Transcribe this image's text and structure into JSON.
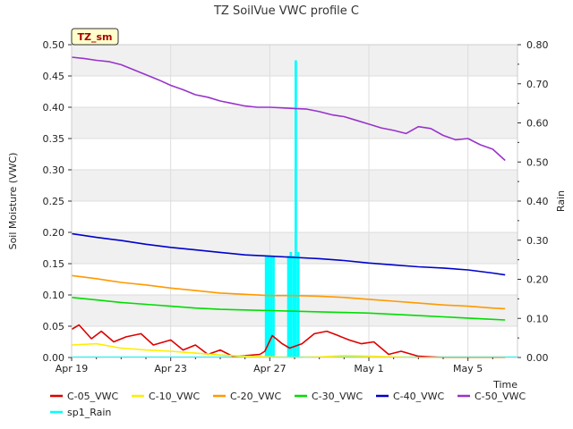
{
  "chart_data": {
    "type": "line",
    "title": "TZ SoilVue VWC profile C",
    "xlabel": "Time",
    "ylabel": "Soil Moisture (VWC)",
    "y2label": "Rain",
    "badge": "TZ_sm",
    "xlim": [
      "2023-04-19",
      "2023-05-07"
    ],
    "ylim": [
      0,
      0.5
    ],
    "y2lim": [
      0,
      0.8
    ],
    "x_ticks": [
      "Apr 19",
      "Apr 23",
      "Apr 27",
      "May 1",
      "May 5"
    ],
    "y_ticks": [
      "0.00",
      "0.05",
      "0.10",
      "0.15",
      "0.20",
      "0.25",
      "0.30",
      "0.35",
      "0.40",
      "0.45",
      "0.50"
    ],
    "y2_ticks": [
      "0.00",
      "0.10",
      "0.20",
      "0.30",
      "0.40",
      "0.50",
      "0.60",
      "0.70",
      "0.80"
    ],
    "grid": true,
    "legend_position": "bottom",
    "series": [
      {
        "name": "C-05_VWC",
        "color": "#dd0000",
        "axis": "left",
        "x": [
          0,
          0.3,
          0.8,
          1.2,
          1.7,
          2.2,
          2.8,
          3.3,
          4.0,
          4.5,
          5.0,
          5.5,
          6.0,
          6.5,
          7.0,
          7.6,
          7.8,
          8.1,
          8.5,
          8.8,
          9.3,
          9.8,
          10.3,
          10.7,
          11.2,
          11.7,
          12.2,
          12.8,
          13.3,
          14.0,
          15.0,
          16.5,
          17.5
        ],
        "y": [
          0.045,
          0.052,
          0.03,
          0.042,
          0.025,
          0.033,
          0.038,
          0.02,
          0.028,
          0.012,
          0.02,
          0.005,
          0.012,
          0.002,
          0.003,
          0.005,
          0.01,
          0.035,
          0.022,
          0.015,
          0.022,
          0.038,
          0.042,
          0.036,
          0.028,
          0.022,
          0.025,
          0.005,
          0.01,
          0.002,
          0.0,
          0.0,
          0.0
        ]
      },
      {
        "name": "C-10_VWC",
        "color": "#ffee00",
        "axis": "left",
        "x": [
          0,
          1.0,
          2.0,
          3.0,
          4.0,
          5.0,
          6.0,
          7.0,
          8.0,
          9.0,
          10.0,
          11.0,
          12.0,
          13.0,
          14.0,
          15.0,
          16.0,
          17.5
        ],
        "y": [
          0.02,
          0.022,
          0.015,
          0.012,
          0.01,
          0.007,
          0.004,
          0.002,
          0.001,
          0.0,
          0.001,
          0.003,
          0.002,
          0.001,
          0.0,
          0.0,
          0.0,
          0.0
        ]
      },
      {
        "name": "C-20_VWC",
        "color": "#ff9900",
        "axis": "left",
        "x": [
          0,
          1,
          2,
          3,
          4,
          5,
          6,
          7,
          8,
          9,
          10,
          11,
          12,
          13,
          14,
          15,
          16,
          17,
          17.5
        ],
        "y": [
          0.131,
          0.126,
          0.12,
          0.116,
          0.111,
          0.107,
          0.103,
          0.101,
          0.099,
          0.099,
          0.098,
          0.096,
          0.093,
          0.09,
          0.087,
          0.084,
          0.082,
          0.079,
          0.078
        ]
      },
      {
        "name": "C-30_VWC",
        "color": "#00dd00",
        "axis": "left",
        "x": [
          0,
          1,
          2,
          3,
          4,
          5,
          6,
          7,
          8,
          9,
          10,
          11,
          12,
          13,
          14,
          15,
          16,
          17,
          17.5
        ],
        "y": [
          0.096,
          0.092,
          0.088,
          0.085,
          0.082,
          0.079,
          0.077,
          0.076,
          0.075,
          0.074,
          0.073,
          0.072,
          0.071,
          0.069,
          0.067,
          0.065,
          0.063,
          0.061,
          0.06
        ]
      },
      {
        "name": "C-40_VWC",
        "color": "#0000cc",
        "axis": "left",
        "x": [
          0,
          1,
          2,
          3,
          4,
          5,
          6,
          7,
          8,
          9,
          10,
          11,
          12,
          13,
          14,
          15,
          16,
          17,
          17.5
        ],
        "y": [
          0.198,
          0.192,
          0.187,
          0.181,
          0.176,
          0.172,
          0.168,
          0.164,
          0.162,
          0.16,
          0.158,
          0.155,
          0.151,
          0.148,
          0.145,
          0.143,
          0.14,
          0.135,
          0.132
        ]
      },
      {
        "name": "C-50_VWC",
        "color": "#9933cc",
        "axis": "left",
        "x": [
          0,
          0.5,
          1.0,
          1.5,
          2.0,
          2.5,
          3.0,
          3.5,
          4.0,
          4.5,
          5.0,
          5.5,
          6.0,
          6.5,
          7.0,
          7.5,
          8.0,
          8.5,
          9.0,
          9.5,
          10.0,
          10.5,
          11.0,
          11.5,
          12.0,
          12.5,
          13.0,
          13.5,
          14.0,
          14.5,
          15.0,
          15.5,
          16.0,
          16.5,
          17.0,
          17.5
        ],
        "y": [
          0.48,
          0.478,
          0.475,
          0.473,
          0.468,
          0.46,
          0.452,
          0.444,
          0.435,
          0.428,
          0.42,
          0.416,
          0.41,
          0.406,
          0.402,
          0.4,
          0.4,
          0.399,
          0.398,
          0.397,
          0.393,
          0.388,
          0.385,
          0.379,
          0.373,
          0.367,
          0.363,
          0.358,
          0.369,
          0.366,
          0.355,
          0.348,
          0.35,
          0.34,
          0.333,
          0.315
        ]
      }
    ],
    "rain": {
      "name": "sp1_Rain",
      "color": "#00ffff",
      "axis": "right",
      "bars": [
        {
          "x": 7.85,
          "y": 0.26
        },
        {
          "x": 7.95,
          "y": 0.26
        },
        {
          "x": 8.05,
          "y": 0.26
        },
        {
          "x": 8.15,
          "y": 0.26
        },
        {
          "x": 8.75,
          "y": 0.26
        },
        {
          "x": 8.85,
          "y": 0.27
        },
        {
          "x": 8.95,
          "y": 0.26
        },
        {
          "x": 9.05,
          "y": 0.76
        },
        {
          "x": 9.15,
          "y": 0.27
        }
      ]
    }
  }
}
